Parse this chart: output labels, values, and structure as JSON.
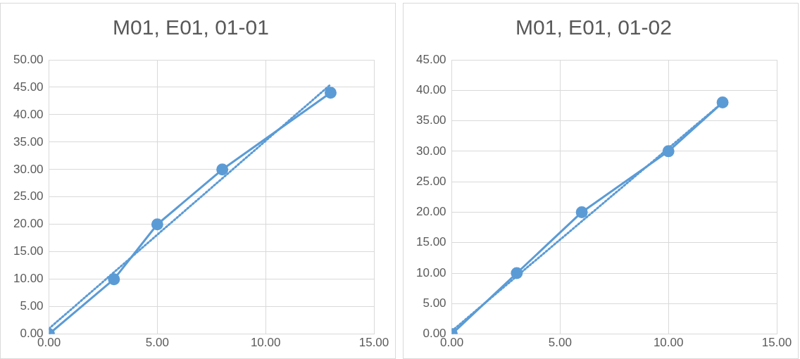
{
  "chart_data": [
    {
      "type": "line",
      "title": "M01, E01, 01-01",
      "x": [
        0,
        3,
        5,
        8,
        13
      ],
      "series": [
        {
          "color": "#5b9bd5",
          "values": [
            0,
            10,
            20,
            30,
            44
          ],
          "marker": "circle",
          "line_style": "solid"
        },
        {
          "type": "line",
          "color": "#5b9bd5",
          "x": [
            0,
            13
          ],
          "values": [
            1,
            45.5
          ],
          "marker": "none",
          "line_style": "dotted"
        }
      ],
      "xlim": [
        0,
        15
      ],
      "xticks": [
        {
          "value": 0,
          "label": "0.00"
        },
        {
          "value": 5,
          "label": "5.00"
        },
        {
          "value": 10,
          "label": "10.00"
        },
        {
          "value": 15,
          "label": "15.00"
        }
      ],
      "ylim": [
        0,
        50
      ],
      "yticks": [
        {
          "value": 0,
          "label": "0.00"
        },
        {
          "value": 5,
          "label": "5.00"
        },
        {
          "value": 10,
          "label": "10.00"
        },
        {
          "value": 15,
          "label": "15.00"
        },
        {
          "value": 20,
          "label": "20.00"
        },
        {
          "value": 25,
          "label": "25.00"
        },
        {
          "value": 30,
          "label": "30.00"
        },
        {
          "value": 35,
          "label": "35.00"
        },
        {
          "value": 40,
          "label": "40.00"
        },
        {
          "value": 45,
          "label": "45.00"
        },
        {
          "value": 50,
          "label": "50.00"
        }
      ],
      "grid": true,
      "legend": false
    },
    {
      "type": "line",
      "title": "M01, E01, 01-02",
      "x": [
        0,
        3,
        6,
        10,
        12.5
      ],
      "series": [
        {
          "color": "#5b9bd5",
          "values": [
            0,
            10,
            20,
            30,
            38
          ],
          "marker": "circle",
          "line_style": "solid"
        },
        {
          "type": "line",
          "color": "#5b9bd5",
          "x": [
            0,
            12.5
          ],
          "values": [
            0.5,
            38
          ],
          "marker": "none",
          "line_style": "dotted"
        }
      ],
      "xlim": [
        0,
        15
      ],
      "xticks": [
        {
          "value": 0,
          "label": "0.00"
        },
        {
          "value": 5,
          "label": "5.00"
        },
        {
          "value": 10,
          "label": "10.00"
        },
        {
          "value": 15,
          "label": "15.00"
        }
      ],
      "ylim": [
        0,
        45
      ],
      "yticks": [
        {
          "value": 0,
          "label": "0.00"
        },
        {
          "value": 5,
          "label": "5.00"
        },
        {
          "value": 10,
          "label": "10.00"
        },
        {
          "value": 15,
          "label": "15.00"
        },
        {
          "value": 20,
          "label": "20.00"
        },
        {
          "value": 25,
          "label": "25.00"
        },
        {
          "value": 30,
          "label": "30.00"
        },
        {
          "value": 35,
          "label": "35.00"
        },
        {
          "value": 40,
          "label": "40.00"
        },
        {
          "value": 45,
          "label": "45.00"
        }
      ],
      "grid": true,
      "legend": false
    }
  ]
}
